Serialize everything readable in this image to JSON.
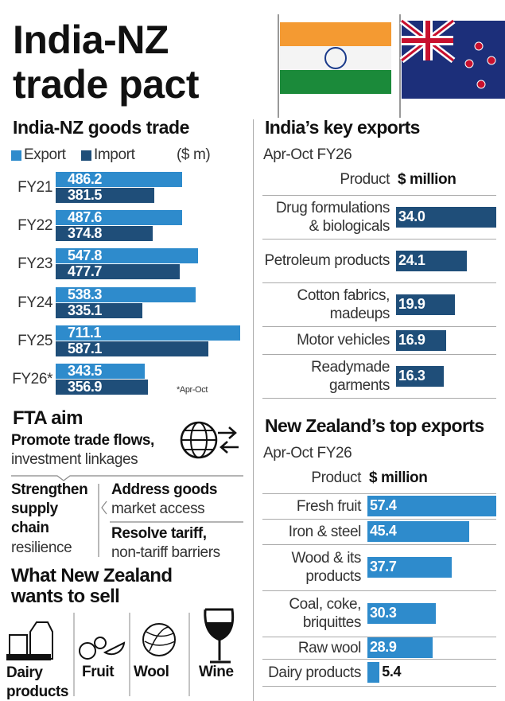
{
  "header": {
    "title": "India-NZ trade pact"
  },
  "chart_data": [
    {
      "type": "bar",
      "title": "India-NZ goods trade",
      "unit": "($ m)",
      "note": "*Apr-Oct",
      "categories": [
        "FY21",
        "FY22",
        "FY23",
        "FY24",
        "FY25",
        "FY26*"
      ],
      "series": [
        {
          "name": "Export",
          "color": "#2e8bcc",
          "values": [
            486.2,
            487.6,
            547.8,
            538.3,
            711.1,
            343.5
          ]
        },
        {
          "name": "Import",
          "color": "#1f4e79",
          "values": [
            381.5,
            374.8,
            477.7,
            335.1,
            587.1,
            356.9
          ]
        }
      ]
    },
    {
      "type": "bar",
      "title": "India’s key exports",
      "subtitle": "Apr-Oct FY26",
      "category_header": "Product",
      "value_header": "$ million",
      "categories": [
        "Drug formulations & biologicals",
        "Petroleum products",
        "Cotton fabrics, madeups",
        "Motor vehicles",
        "Readymade garments"
      ],
      "values": [
        34.0,
        24.1,
        19.9,
        16.9,
        16.3
      ],
      "value_labels": [
        "34.0",
        "24.1",
        "19.9",
        "16.9",
        "16.3"
      ],
      "color": "#1f4e79"
    },
    {
      "type": "bar",
      "title": "New Zealand’s top exports",
      "subtitle": "Apr-Oct FY26",
      "category_header": "Product",
      "value_header": "$ million",
      "categories": [
        "Fresh fruit",
        "Iron & steel",
        "Wood & its products",
        "Coal, coke, briquittes",
        "Raw wool",
        "Dairy products"
      ],
      "values": [
        57.4,
        45.4,
        37.7,
        30.3,
        28.9,
        5.4
      ],
      "color": "#2e8bcc"
    }
  ],
  "fta_aim": {
    "title": "FTA aim",
    "items": [
      {
        "bold": "Promote trade flows,",
        "text": "investment linkages"
      },
      {
        "bold": "Strengthen supply chain",
        "text": "resilience"
      },
      {
        "bold": "Address goods",
        "text": "market access"
      },
      {
        "bold": "Resolve tariff,",
        "text": "non-tariff barriers"
      }
    ]
  },
  "sell": {
    "title": "What New Zealand wants to sell",
    "items": [
      "Dairy products",
      "Fruit",
      "Wool",
      "Wine"
    ]
  }
}
